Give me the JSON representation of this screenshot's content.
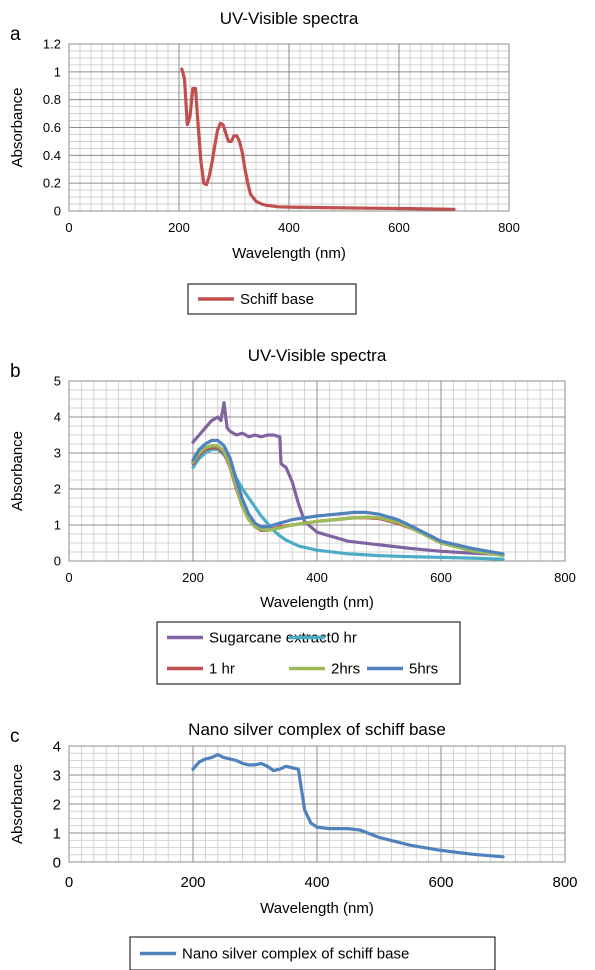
{
  "chart_data": [
    {
      "panel_label": "a",
      "type": "line",
      "title": "UV-Visible spectra",
      "xlabel": "Wavelength (nm)",
      "ylabel": "Absorbance",
      "xlim": [
        0,
        800
      ],
      "ylim": [
        0,
        1.2
      ],
      "xticks": [
        0,
        200,
        400,
        600,
        800
      ],
      "yticks": [
        0,
        0.2,
        0.4,
        0.6,
        0.8,
        1,
        1.2
      ],
      "ytick_labels": [
        "0",
        "0.2",
        "0.4",
        "0.6",
        "0.8",
        "1",
        "1.2"
      ],
      "grid": true,
      "legend_position": "bottom",
      "series": [
        {
          "name": "Schiff base",
          "color": "#c0504d",
          "x": [
            205,
            210,
            215,
            220,
            225,
            230,
            235,
            240,
            245,
            250,
            255,
            260,
            265,
            270,
            275,
            280,
            285,
            290,
            295,
            300,
            305,
            310,
            315,
            320,
            325,
            330,
            340,
            350,
            360,
            370,
            380,
            400,
            450,
            500,
            550,
            600,
            650,
            700
          ],
          "y": [
            1.02,
            0.95,
            0.62,
            0.68,
            0.88,
            0.88,
            0.6,
            0.35,
            0.2,
            0.19,
            0.25,
            0.35,
            0.47,
            0.58,
            0.63,
            0.62,
            0.56,
            0.5,
            0.5,
            0.54,
            0.54,
            0.5,
            0.42,
            0.3,
            0.2,
            0.12,
            0.07,
            0.05,
            0.04,
            0.035,
            0.03,
            0.028,
            0.025,
            0.022,
            0.02,
            0.018,
            0.015,
            0.012
          ]
        }
      ]
    },
    {
      "panel_label": "b",
      "type": "line",
      "title": "UV-Visible spectra",
      "xlabel": "Wavelength (nm)",
      "ylabel": "Absorbance",
      "xlim": [
        0,
        800
      ],
      "ylim": [
        0,
        5
      ],
      "xticks": [
        0,
        200,
        400,
        600,
        800
      ],
      "yticks": [
        0,
        1,
        2,
        3,
        4,
        5
      ],
      "grid": true,
      "legend_position": "bottom",
      "series": [
        {
          "name": "Sugarcane extract",
          "color": "#8064a2",
          "x": [
            200,
            210,
            220,
            230,
            240,
            245,
            250,
            255,
            260,
            270,
            280,
            290,
            300,
            310,
            320,
            330,
            340,
            342,
            350,
            360,
            370,
            380,
            400,
            450,
            500,
            550,
            600,
            650,
            700
          ],
          "y": [
            3.3,
            3.5,
            3.7,
            3.9,
            4.0,
            3.9,
            4.4,
            3.7,
            3.6,
            3.5,
            3.55,
            3.45,
            3.5,
            3.45,
            3.5,
            3.5,
            3.45,
            2.7,
            2.6,
            2.2,
            1.6,
            1.1,
            0.8,
            0.55,
            0.45,
            0.35,
            0.27,
            0.22,
            0.18
          ]
        },
        {
          "name": "0 hr",
          "color": "#4bacc6",
          "x": [
            200,
            210,
            220,
            230,
            240,
            250,
            260,
            270,
            280,
            290,
            300,
            310,
            320,
            330,
            340,
            350,
            370,
            400,
            450,
            500,
            550,
            600,
            650,
            700
          ],
          "y": [
            2.6,
            2.85,
            3.0,
            3.1,
            3.1,
            2.95,
            2.7,
            2.3,
            2.0,
            1.75,
            1.5,
            1.25,
            1.05,
            0.85,
            0.7,
            0.58,
            0.42,
            0.3,
            0.2,
            0.15,
            0.12,
            0.1,
            0.08,
            0.05
          ]
        },
        {
          "name": "1 hr",
          "color": "#c0504d",
          "x": [
            200,
            210,
            220,
            230,
            240,
            250,
            260,
            270,
            280,
            290,
            300,
            310,
            320,
            330,
            340,
            360,
            380,
            400,
            430,
            460,
            480,
            500,
            530,
            560,
            600,
            650,
            700
          ],
          "y": [
            2.7,
            2.95,
            3.1,
            3.15,
            3.15,
            3.0,
            2.6,
            2.0,
            1.5,
            1.15,
            0.95,
            0.85,
            0.85,
            0.9,
            0.95,
            1.0,
            1.05,
            1.1,
            1.15,
            1.2,
            1.2,
            1.18,
            1.05,
            0.85,
            0.5,
            0.3,
            0.18
          ]
        },
        {
          "name": "2hrs",
          "color": "#9bbb59",
          "x": [
            200,
            210,
            220,
            230,
            240,
            250,
            260,
            270,
            280,
            290,
            300,
            310,
            320,
            330,
            340,
            360,
            380,
            400,
            430,
            460,
            480,
            500,
            530,
            560,
            600,
            650,
            700
          ],
          "y": [
            2.75,
            3.0,
            3.15,
            3.2,
            3.2,
            3.05,
            2.65,
            2.05,
            1.5,
            1.15,
            0.95,
            0.88,
            0.85,
            0.88,
            0.92,
            1.0,
            1.05,
            1.1,
            1.15,
            1.2,
            1.22,
            1.2,
            1.08,
            0.85,
            0.5,
            0.28,
            0.15
          ]
        },
        {
          "name": "5hrs",
          "color": "#4f81bd",
          "x": [
            200,
            210,
            220,
            230,
            240,
            250,
            260,
            270,
            280,
            290,
            300,
            310,
            320,
            330,
            340,
            360,
            380,
            400,
            430,
            460,
            480,
            500,
            530,
            560,
            600,
            650,
            700
          ],
          "y": [
            2.8,
            3.1,
            3.25,
            3.35,
            3.35,
            3.2,
            2.85,
            2.25,
            1.7,
            1.3,
            1.05,
            0.95,
            0.95,
            1.0,
            1.05,
            1.15,
            1.2,
            1.25,
            1.3,
            1.35,
            1.35,
            1.3,
            1.15,
            0.9,
            0.55,
            0.35,
            0.2
          ]
        }
      ]
    },
    {
      "panel_label": "c",
      "type": "line",
      "title": "Nano silver complex of schiff base",
      "xlabel": "Wavelength (nm)",
      "ylabel": "Absorbance",
      "xlim": [
        0,
        800
      ],
      "ylim": [
        0,
        4
      ],
      "xticks": [
        0,
        200,
        400,
        600,
        800
      ],
      "yticks": [
        0,
        1,
        2,
        3,
        4
      ],
      "grid": true,
      "legend_position": "bottom",
      "series": [
        {
          "name": "Nano silver complex of schiff base",
          "color": "#4f81bd",
          "x": [
            200,
            210,
            220,
            230,
            240,
            250,
            260,
            270,
            280,
            290,
            300,
            310,
            320,
            330,
            340,
            350,
            360,
            370,
            375,
            380,
            390,
            400,
            420,
            450,
            470,
            500,
            550,
            600,
            650,
            700
          ],
          "y": [
            3.2,
            3.45,
            3.55,
            3.6,
            3.7,
            3.6,
            3.55,
            3.5,
            3.4,
            3.35,
            3.35,
            3.4,
            3.3,
            3.15,
            3.2,
            3.3,
            3.25,
            3.2,
            2.5,
            1.8,
            1.35,
            1.2,
            1.15,
            1.15,
            1.1,
            0.85,
            0.58,
            0.4,
            0.27,
            0.18
          ]
        }
      ]
    }
  ]
}
